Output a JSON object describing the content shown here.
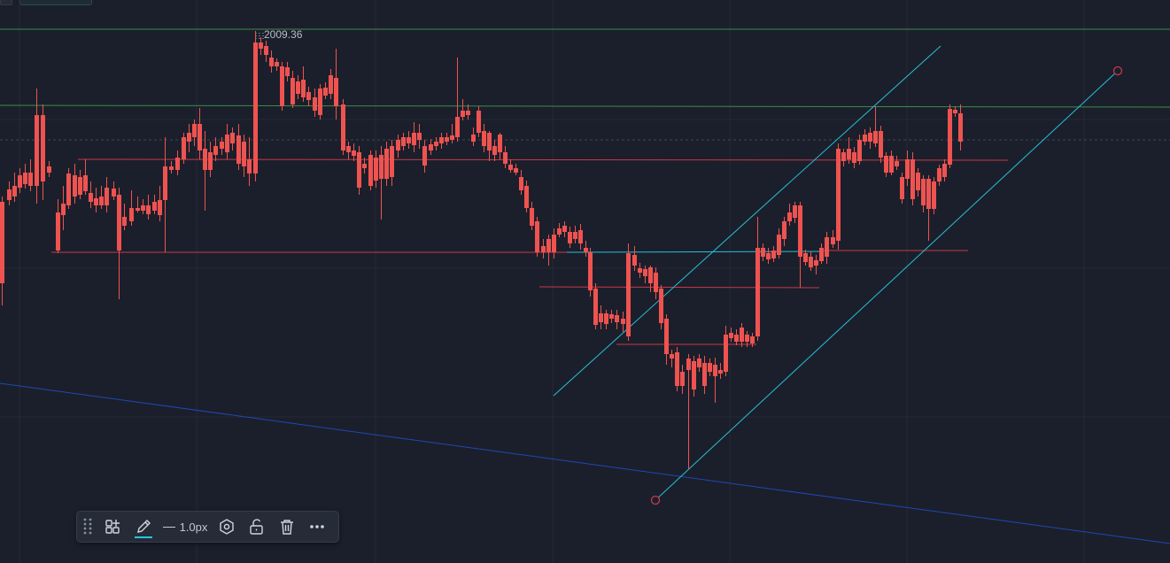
{
  "chart": {
    "peak_label": "2009.36",
    "colors": {
      "background": "#1b1f2b",
      "grid": "#252a37",
      "up_candle": "#26a69a",
      "down_candle": "#ef5350",
      "support_line": "#c9384a",
      "channel_line": "#25c1d8",
      "horizontal_green": "#3c8c48",
      "trend_blue": "#1e48b5",
      "dashed_price": "#3d4552"
    }
  },
  "toolbar": {
    "items": [
      {
        "name": "drag-handle",
        "icon": "drag-handle-icon"
      },
      {
        "name": "templates-button",
        "icon": "templates-icon"
      },
      {
        "name": "line-color-button",
        "icon": "pencil-icon"
      },
      {
        "name": "line-width-button",
        "icon": "line-width-icon"
      },
      {
        "name": "settings-button",
        "icon": "settings-hexagon-icon"
      },
      {
        "name": "lock-button",
        "icon": "unlock-icon"
      },
      {
        "name": "delete-button",
        "icon": "trash-icon"
      },
      {
        "name": "more-button",
        "icon": "more-dots-icon"
      }
    ],
    "line_width_label": "1.0px"
  }
}
